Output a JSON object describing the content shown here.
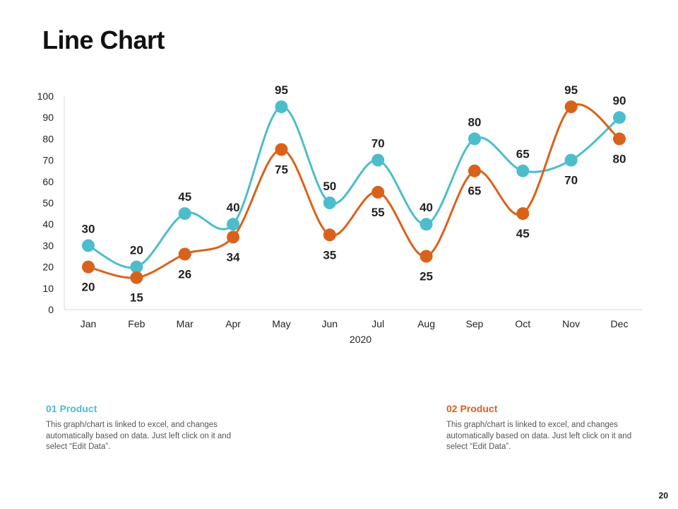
{
  "page": {
    "title": "Line Chart",
    "page_number": "20"
  },
  "colors": {
    "series1": "#4DBDCB",
    "series2": "#D9621A",
    "axis": "#D9D9D9"
  },
  "chart_data": {
    "type": "line",
    "title": "",
    "xlabel": "2020",
    "ylabel": "",
    "ylim": [
      0,
      100
    ],
    "yticks": [
      0,
      10,
      20,
      30,
      40,
      50,
      60,
      70,
      80,
      90,
      100
    ],
    "categories": [
      "Jan",
      "Feb",
      "Mar",
      "Apr",
      "May",
      "Jun",
      "Jul",
      "Aug",
      "Sep",
      "Oct",
      "Nov",
      "Dec"
    ],
    "series": [
      {
        "name": "01 Product",
        "values": [
          30,
          20,
          45,
          40,
          95,
          50,
          70,
          40,
          80,
          65,
          70,
          90
        ]
      },
      {
        "name": "02 Product",
        "values": [
          20,
          15,
          26,
          34,
          75,
          35,
          55,
          25,
          65,
          45,
          95,
          80
        ]
      }
    ],
    "grid": false,
    "legend": "none"
  },
  "products": [
    {
      "title": "01 Product",
      "description": "This graph/chart is linked to excel, and changes automatically based on data. Just left click on it and select “Edit Data”."
    },
    {
      "title": "02 Product",
      "description": "This graph/chart is linked to excel, and changes automatically based on data. Just left click on it and select “Edit Data”."
    }
  ]
}
